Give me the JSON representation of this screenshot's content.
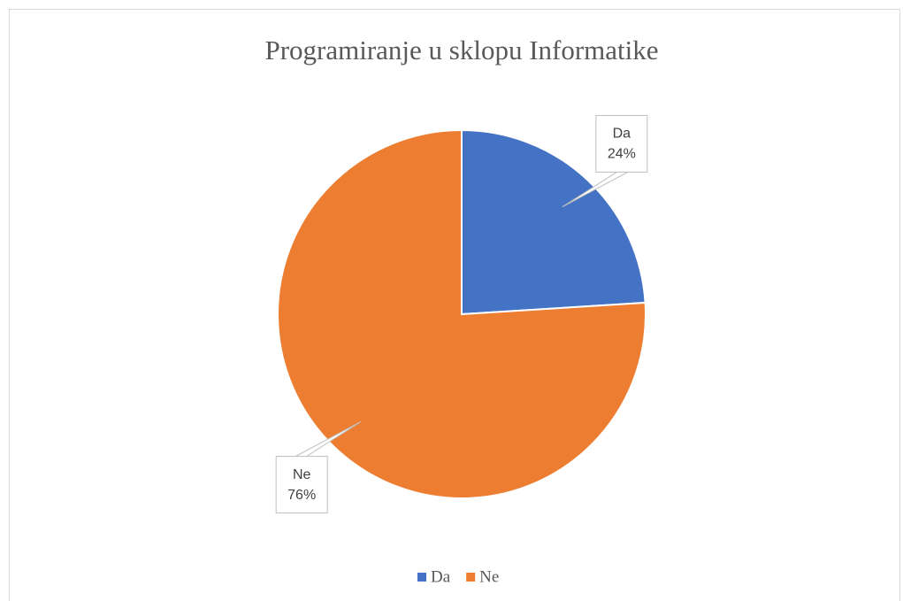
{
  "chart_data": {
    "type": "pie",
    "title": "Programiranje u sklopu Informatike",
    "categories": [
      "Da",
      "Ne"
    ],
    "values": [
      24,
      76
    ],
    "value_labels": [
      "24%",
      "76%"
    ],
    "colors": [
      "#4472c4",
      "#ed7d31"
    ],
    "legend": "bottom"
  }
}
